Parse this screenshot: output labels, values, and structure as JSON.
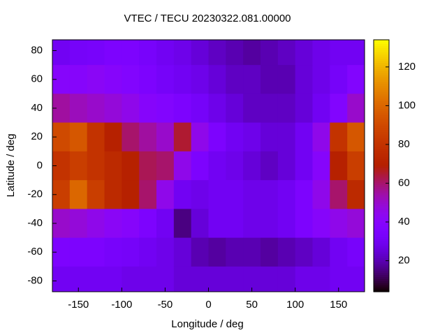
{
  "chart_data": {
    "type": "heatmap",
    "title": "VTEC / TECU 20230322.081.00000",
    "xlabel": "Longitude / deg",
    "ylabel": "Latitude / deg",
    "x": [
      -170,
      -150,
      -130,
      -110,
      -90,
      -70,
      -50,
      -30,
      -10,
      10,
      30,
      50,
      70,
      90,
      110,
      130,
      150,
      170
    ],
    "y": [
      80,
      60,
      40,
      20,
      0,
      -20,
      -40,
      -60,
      -80
    ],
    "z": [
      [
        30,
        32,
        33,
        35,
        35,
        33,
        30,
        28,
        25,
        22,
        20,
        18,
        20,
        22,
        25,
        28,
        30,
        30
      ],
      [
        40,
        40,
        42,
        40,
        38,
        35,
        32,
        30,
        28,
        25,
        22,
        22,
        20,
        20,
        25,
        28,
        32,
        38
      ],
      [
        55,
        52,
        50,
        48,
        45,
        40,
        38,
        35,
        32,
        28,
        25,
        22,
        22,
        22,
        25,
        30,
        38,
        50
      ],
      [
        90,
        95,
        80,
        70,
        60,
        55,
        50,
        65,
        45,
        35,
        30,
        28,
        25,
        25,
        30,
        45,
        80,
        95
      ],
      [
        80,
        85,
        80,
        75,
        70,
        62,
        60,
        45,
        35,
        30,
        28,
        25,
        22,
        25,
        30,
        40,
        70,
        85
      ],
      [
        85,
        100,
        85,
        75,
        70,
        60,
        45,
        30,
        28,
        30,
        30,
        28,
        28,
        30,
        35,
        45,
        60,
        75
      ],
      [
        50,
        48,
        45,
        42,
        40,
        35,
        30,
        15,
        25,
        30,
        30,
        28,
        28,
        30,
        35,
        40,
        45,
        48
      ],
      [
        35,
        35,
        35,
        33,
        32,
        30,
        28,
        25,
        20,
        18,
        20,
        20,
        18,
        20,
        22,
        25,
        30,
        33
      ],
      [
        30,
        30,
        30,
        30,
        28,
        28,
        28,
        25,
        25,
        25,
        25,
        25,
        25,
        25,
        28,
        28,
        30,
        30
      ]
    ],
    "xlim": [
      -180,
      180
    ],
    "ylim": [
      -87.5,
      87.5
    ],
    "xticks": [
      -150,
      -100,
      -50,
      0,
      50,
      100,
      150
    ],
    "yticks": [
      -80,
      -60,
      -40,
      -20,
      0,
      20,
      40,
      60,
      80
    ],
    "zlim": [
      4,
      134
    ],
    "zticks": [
      20,
      40,
      60,
      80,
      100,
      120
    ],
    "colormap": "gnuplot"
  }
}
